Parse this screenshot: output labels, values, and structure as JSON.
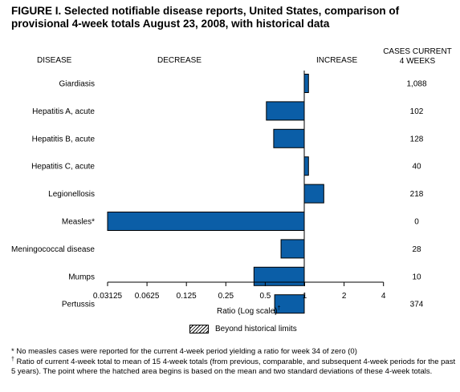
{
  "title": "FIGURE I. Selected notifiable disease reports, United States, comparison of provisional 4-week totals August 23, 2008, with historical data",
  "headers": {
    "disease": "DISEASE",
    "decrease": "DECREASE",
    "increase": "INCREASE",
    "cases_line1": "CASES CURRENT",
    "cases_line2": "4 WEEKS"
  },
  "chart_data": {
    "type": "bar",
    "orientation": "horizontal",
    "scale": "log2",
    "baseline": 1,
    "categories": [
      "Giardiasis",
      "Hepatitis A, acute",
      "Hepatitis B, acute",
      "Hepatitis C, acute",
      "Legionellosis",
      "Measles*",
      "Meningococcal disease",
      "Mumps",
      "Pertussis"
    ],
    "values": [
      1.07,
      0.51,
      0.58,
      1.07,
      1.4,
      0.03125,
      0.66,
      0.41,
      0.59
    ],
    "cases_current_4_weeks": [
      "1,088",
      "102",
      "128",
      "40",
      "218",
      "0",
      "28",
      "10",
      "374"
    ],
    "x_ticks": [
      0.03125,
      0.0625,
      0.125,
      0.25,
      0.5,
      1,
      2,
      4
    ],
    "x_tick_labels": [
      "0.03125",
      "0.0625",
      "0.125",
      "0.25",
      "0.5",
      "1",
      "2",
      "4"
    ],
    "xlim": [
      0.03125,
      4
    ],
    "xlabel": "Ratio (Log scale)",
    "xlabel_mark": "†",
    "bar_color": "#0b5ea7",
    "legend": [
      {
        "label": "Beyond historical limits",
        "pattern": "hatched"
      }
    ]
  },
  "footnotes": {
    "fn1": "* No measles cases were reported for the current 4-week period yielding a ratio for week 34 of zero (0)",
    "fn2_mark": "†",
    "fn2": " Ratio of current 4-week total to mean of 15 4-week totals (from previous, comparable, and subsequent 4-week periods for the past 5 years). The point where the hatched area begins is based on the mean and two standard deviations of these 4-week totals."
  }
}
